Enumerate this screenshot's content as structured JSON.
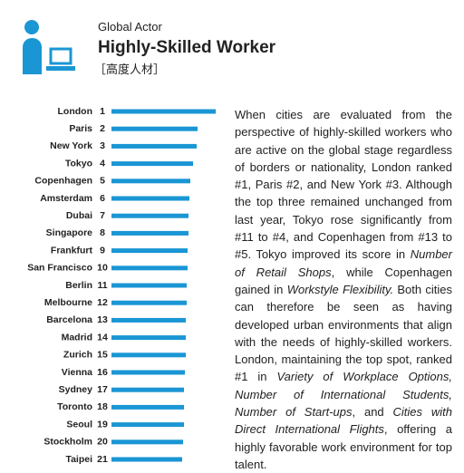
{
  "header": {
    "kicker": "Global Actor",
    "title": "Highly-Skilled Worker",
    "subtitle": "［高度人材］"
  },
  "chart_data": {
    "type": "bar",
    "orientation": "horizontal",
    "color": "#1a96d4",
    "categories": [
      "London",
      "Paris",
      "New York",
      "Tokyo",
      "Copenhagen",
      "Amsterdam",
      "Dubai",
      "Singapore",
      "Frankfurt",
      "San Francisco",
      "Berlin",
      "Melbourne",
      "Barcelona",
      "Madrid",
      "Zurich",
      "Vienna",
      "Sydney",
      "Toronto",
      "Seoul",
      "Stockholm",
      "Taipei"
    ],
    "ranks": [
      1,
      2,
      3,
      4,
      5,
      6,
      7,
      8,
      9,
      10,
      11,
      12,
      13,
      14,
      15,
      16,
      17,
      18,
      19,
      20,
      21
    ],
    "values": [
      115,
      95,
      94,
      90,
      87,
      86,
      85,
      85,
      84,
      84,
      83,
      83,
      82,
      82,
      82,
      81,
      80,
      80,
      80,
      79,
      78
    ]
  },
  "paragraph": [
    {
      "text": "When cities are evaluated from the perspective of highly-skilled workers who are active on the global stage regardless of borders or nationality, London ranked #1, Paris #2, and New York #3. Although the top three remained unchanged from last year, Tokyo rose significantly from #11 to #4, and Copenhagen from #13 to #5. Tokyo improved its score in ",
      "italic": false
    },
    {
      "text": "Number of Retail Shops",
      "italic": true
    },
    {
      "text": ", while Copenhagen gained in ",
      "italic": false
    },
    {
      "text": "Workstyle Flexibility.",
      "italic": true
    },
    {
      "text": " Both cities can therefore be seen as having developed urban environments that align with the needs of highly-skilled workers. London, maintaining the top spot, ranked #1 in ",
      "italic": false
    },
    {
      "text": "Variety of Workplace Options, Number of International Students, Number of Start-ups",
      "italic": true
    },
    {
      "text": ", and ",
      "italic": false
    },
    {
      "text": "Cities with Direct International Flights",
      "italic": true
    },
    {
      "text": ", offering a highly favorable work environment for top talent.",
      "italic": false
    }
  ]
}
